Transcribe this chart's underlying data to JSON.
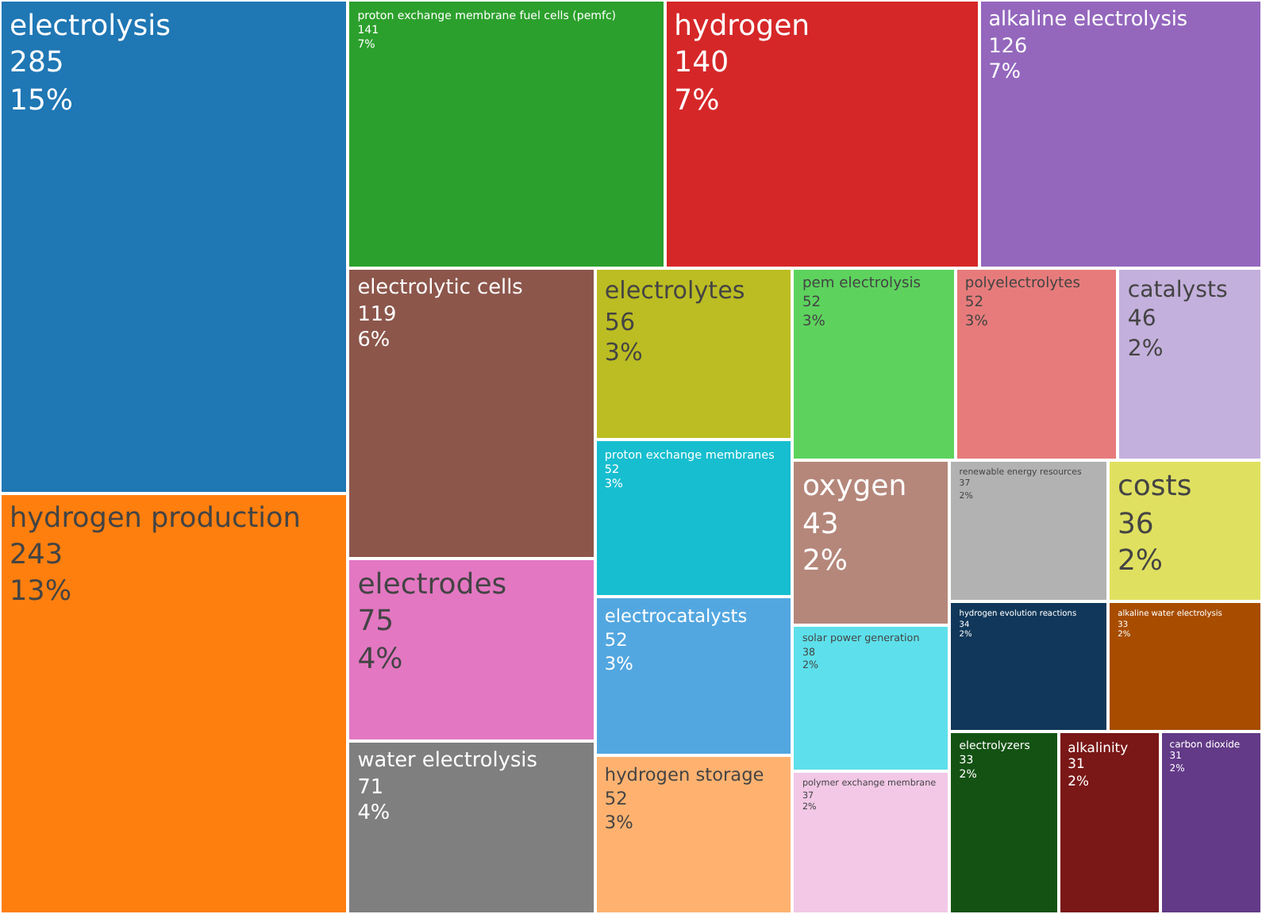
{
  "chart_data": {
    "type": "other",
    "categories": [
      "electrolysis",
      "hydrogen production",
      "proton exchange membrane fuel cells (pemfc)",
      "hydrogen",
      "alkaline electrolysis",
      "electrolytic cells",
      "electrodes",
      "water electrolysis",
      "electrolytes",
      "proton exchange membranes",
      "electrocatalysts",
      "hydrogen storage",
      "pem electrolysis",
      "polyelectrolytes",
      "catalysts",
      "oxygen",
      "solar power generation",
      "polymer exchange membrane",
      "renewable energy resources",
      "costs",
      "hydrogen evolution reactions",
      "alkaline water electrolysis",
      "electrolyzers",
      "alkalinity",
      "carbon dioxide"
    ],
    "values": [
      285,
      243,
      141,
      140,
      126,
      119,
      75,
      71,
      56,
      52,
      52,
      52,
      52,
      52,
      46,
      43,
      38,
      37,
      37,
      36,
      34,
      33,
      33,
      31,
      31
    ],
    "value_labels": [
      "285\n15%",
      "243\n13%",
      "141\n7%",
      "140\n7%",
      "126\n7%",
      "119\n6%",
      "75\n4%",
      "71\n4%",
      "56\n3%",
      "52\n3%",
      "52\n3%",
      "52\n3%",
      "52\n3%",
      "52\n3%",
      "46\n2%",
      "43\n2%",
      "38\n2%",
      "37\n2%",
      "37\n2%",
      "36\n2%",
      "34\n2%",
      "33\n2%",
      "33\n2%",
      "31\n2%",
      "31\n2%"
    ],
    "colors": [
      "#1f77b4",
      "#ff7f0e",
      "#2ca02c",
      "#d62728",
      "#9467bd",
      "#8c564b",
      "#e377c2",
      "#7f7f7f",
      "#bcbd22",
      "#17becf",
      "#53a7e0",
      "#ffb270",
      "#5dd35d",
      "#e77b7b",
      "#c4b0dc",
      "#b5877b",
      "#5de0eb",
      "#f2c8e6",
      "#b2b2b2",
      "#e0e060",
      "#11385a",
      "#a84d00",
      "#145214",
      "#7a1717",
      "#633a87"
    ]
  }
}
